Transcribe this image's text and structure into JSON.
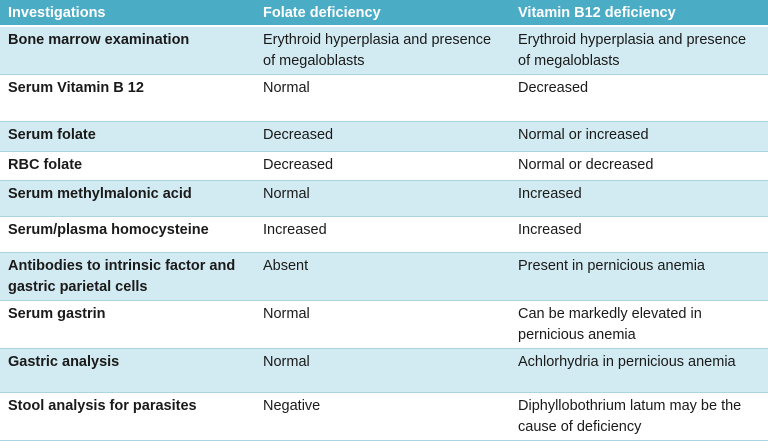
{
  "table": {
    "headers": [
      "Investigations",
      "Folate deficiency",
      "Vitamin B12 deficiency"
    ],
    "rows": [
      {
        "investigation": "Bone marrow examination",
        "folate": "Erythroid hyperplasia and presence of megaloblasts",
        "b12": "Erythroid hyperplasia and presence of megaloblasts"
      },
      {
        "investigation": "Serum Vitamin B 12",
        "folate": "Normal",
        "b12": "Decreased"
      },
      {
        "investigation": "Serum folate",
        "folate": "Decreased",
        "b12": "Normal or increased"
      },
      {
        "investigation": "RBC folate",
        "folate": "Decreased",
        "b12": "Normal or decreased"
      },
      {
        "investigation": "Serum methylmalonic acid",
        "folate": "Normal",
        "b12": "Increased"
      },
      {
        "investigation": "Serum/plasma homocysteine",
        "folate": "Increased",
        "b12": "Increased"
      },
      {
        "investigation": "Antibodies to intrinsic factor and gastric parietal cells",
        "folate": "Absent",
        "b12": "Present in pernicious anemia"
      },
      {
        "investigation": "Serum gastrin",
        "folate": "Normal",
        "b12": "Can be markedly elevated in pernicious anemia"
      },
      {
        "investigation": "Gastric analysis",
        "folate": "Normal",
        "b12": "Achlorhydria in pernicious anemia"
      },
      {
        "investigation": "Stool analysis for parasites",
        "folate": "Negative",
        "b12": "Diphyllobothrium latum may be the cause of deficiency"
      }
    ]
  },
  "colors": {
    "header_bg": "#4bacc6",
    "band_bg": "#d2eaf1",
    "row_bg": "#ffffff"
  }
}
